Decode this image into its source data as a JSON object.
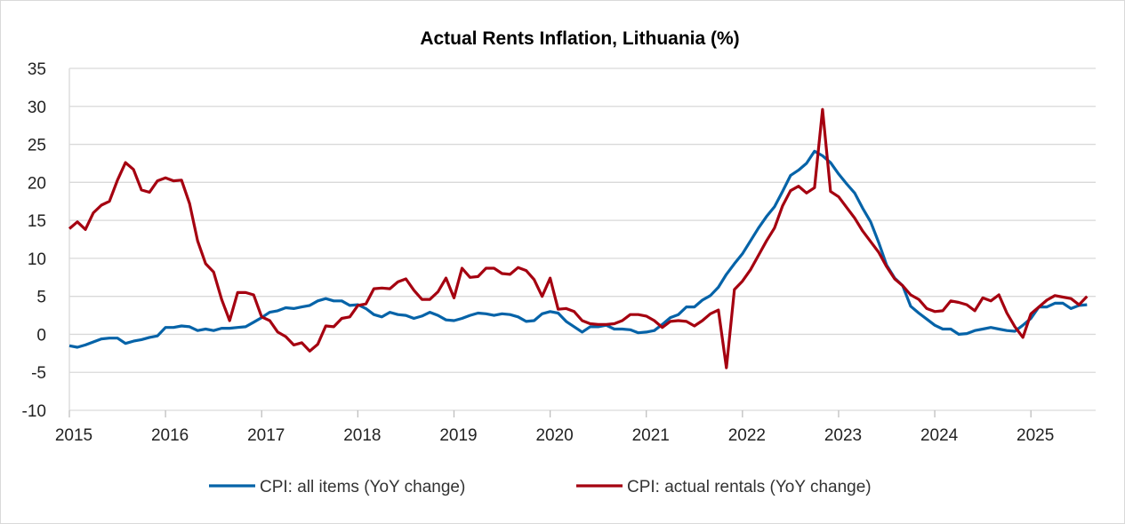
{
  "chart_data": {
    "type": "line",
    "title": "Actual Rents Inflation, Lithuania (%)",
    "xlabel": "",
    "ylabel": "",
    "ylim": [
      -10,
      35
    ],
    "yticks": [
      "-10",
      "-5",
      "0",
      "5",
      "10",
      "15",
      "20",
      "25",
      "30",
      "35"
    ],
    "xticks": [
      "2015",
      "2016",
      "2017",
      "2018",
      "2019",
      "2020",
      "2021",
      "2022",
      "2023",
      "2024",
      "2025"
    ],
    "x_start": "2015-01",
    "x_end": "2025-08",
    "frequency": "monthly",
    "grid": true,
    "legend_position": "bottom",
    "series": [
      {
        "name": "CPI: all items (YoY change)",
        "color": "#0563a8",
        "values": [
          -1.5,
          -1.7,
          -1.4,
          -1.0,
          -0.6,
          -0.5,
          -0.5,
          -1.2,
          -0.9,
          -0.7,
          -0.4,
          -0.2,
          0.9,
          0.9,
          1.1,
          1.0,
          0.5,
          0.7,
          0.5,
          0.8,
          0.8,
          0.9,
          1.0,
          1.6,
          2.2,
          2.9,
          3.1,
          3.5,
          3.4,
          3.6,
          3.8,
          4.4,
          4.7,
          4.4,
          4.4,
          3.8,
          3.9,
          3.4,
          2.6,
          2.3,
          2.9,
          2.6,
          2.5,
          2.1,
          2.4,
          2.9,
          2.5,
          1.9,
          1.8,
          2.1,
          2.5,
          2.8,
          2.7,
          2.5,
          2.7,
          2.6,
          2.3,
          1.7,
          1.8,
          2.7,
          3.0,
          2.8,
          1.7,
          1.0,
          0.3,
          1.0,
          1.0,
          1.2,
          0.7,
          0.7,
          0.6,
          0.2,
          0.3,
          0.5,
          1.3,
          2.2,
          2.6,
          3.6,
          3.6,
          4.5,
          5.1,
          6.2,
          7.9,
          9.3,
          10.6,
          12.3,
          14.0,
          15.5,
          16.8,
          18.8,
          20.9,
          21.6,
          22.5,
          24.1,
          23.5,
          22.6,
          21.1,
          19.8,
          18.6,
          16.6,
          14.8,
          12.1,
          9.1,
          7.4,
          6.4,
          3.7,
          2.8,
          2.0,
          1.2,
          0.7,
          0.7,
          0.0,
          0.1,
          0.5,
          0.7,
          0.9,
          0.7,
          0.5,
          0.4,
          1.2,
          2.1,
          3.6,
          3.6,
          4.1,
          4.1,
          3.4,
          3.8,
          3.9
        ]
      },
      {
        "name": "CPI: actual rentals (YoY change)",
        "color": "#a50010",
        "values": [
          13.9,
          14.8,
          13.8,
          16.0,
          17.0,
          17.5,
          20.3,
          22.6,
          21.7,
          19.0,
          18.7,
          20.2,
          20.6,
          20.2,
          20.3,
          17.2,
          12.3,
          9.3,
          8.2,
          4.6,
          1.8,
          5.5,
          5.5,
          5.2,
          2.3,
          1.8,
          0.3,
          -0.3,
          -1.4,
          -1.1,
          -2.2,
          -1.3,
          1.1,
          1.0,
          2.1,
          2.3,
          3.8,
          4.0,
          6.0,
          6.1,
          6.0,
          6.9,
          7.3,
          5.8,
          4.6,
          4.6,
          5.6,
          7.4,
          4.8,
          8.7,
          7.5,
          7.6,
          8.7,
          8.7,
          8.0,
          7.9,
          8.8,
          8.4,
          7.2,
          5.0,
          7.4,
          3.3,
          3.4,
          3.0,
          1.8,
          1.4,
          1.3,
          1.3,
          1.4,
          1.8,
          2.6,
          2.6,
          2.4,
          1.8,
          0.9,
          1.7,
          1.8,
          1.7,
          1.1,
          1.8,
          2.7,
          3.2,
          -4.4,
          5.9,
          7.0,
          8.5,
          10.4,
          12.3,
          14.0,
          16.9,
          18.9,
          19.5,
          18.6,
          19.3,
          29.6,
          18.8,
          18.1,
          16.7,
          15.3,
          13.6,
          12.2,
          10.8,
          8.9,
          7.3,
          6.4,
          5.2,
          4.6,
          3.4,
          3.0,
          3.1,
          4.4,
          4.2,
          3.9,
          3.1,
          4.8,
          4.4,
          5.2,
          2.8,
          1.0,
          -0.4,
          2.7,
          3.6,
          4.5,
          5.1,
          4.9,
          4.7,
          3.9,
          5.0
        ]
      }
    ]
  }
}
